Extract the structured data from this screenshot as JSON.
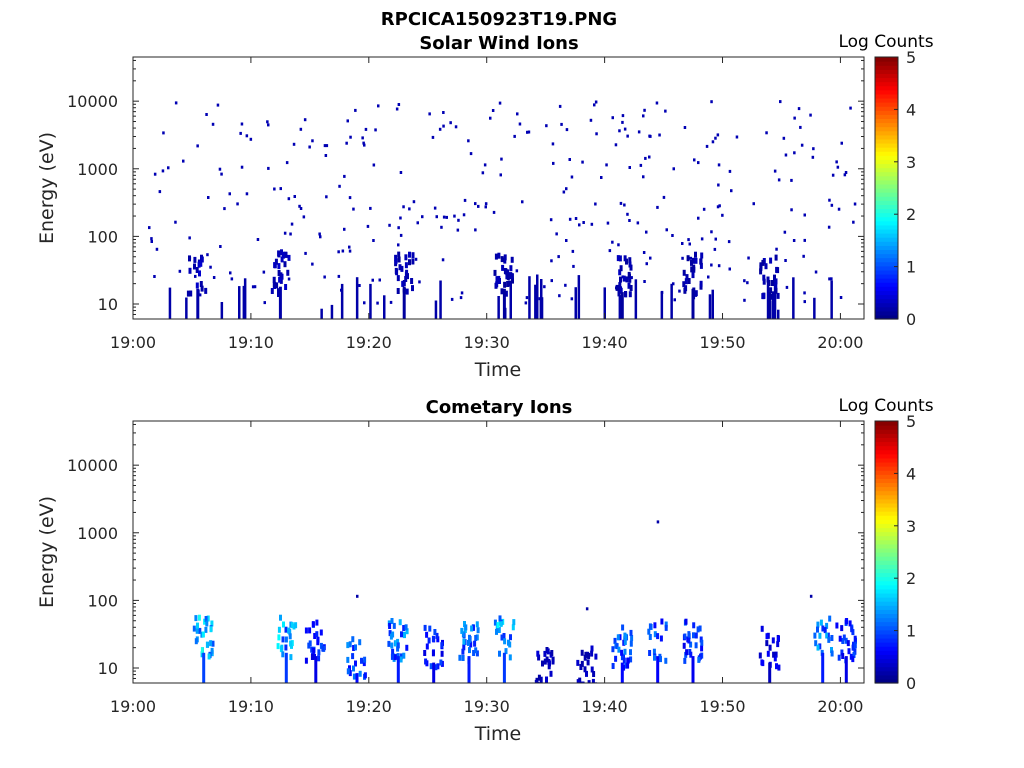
{
  "figure_title": "RPCICA150923T19.PNG",
  "chart_data": [
    {
      "type": "heatmap",
      "title": "Solar Wind Ions",
      "xlabel": "Time",
      "ylabel": "Energy (eV)",
      "x_ticks": [
        "19:00",
        "19:10",
        "19:20",
        "19:30",
        "19:40",
        "19:50",
        "20:00"
      ],
      "xlim": [
        "19:00",
        "20:02"
      ],
      "y_ticks": [
        "10",
        "100",
        "1000",
        "10000"
      ],
      "ylim": [
        6,
        45000
      ],
      "yscale": "log",
      "colorbar": {
        "label": "Log Counts",
        "ticks": [
          "0",
          "1",
          "2",
          "3",
          "4",
          "5"
        ],
        "range": [
          0,
          5
        ],
        "colormap": "jet"
      },
      "clusters": [
        {
          "t": "19:05.5",
          "energy": 28,
          "log_counts": 0.4
        },
        {
          "t": "19:12.5",
          "energy": 30,
          "log_counts": 0.4
        },
        {
          "t": "19:23",
          "energy": 28,
          "log_counts": 0.3
        },
        {
          "t": "19:31.5",
          "energy": 28,
          "log_counts": 0.3
        },
        {
          "t": "19:41.5",
          "energy": 25,
          "log_counts": 0.3
        },
        {
          "t": "19:47.5",
          "energy": 28,
          "log_counts": 0.3
        },
        {
          "t": "19:54",
          "energy": 25,
          "log_counts": 0.3
        }
      ],
      "scatter_range_eV": [
        10,
        10000
      ]
    },
    {
      "type": "heatmap",
      "title": "Cometary Ions",
      "xlabel": "Time",
      "ylabel": "Energy (eV)",
      "x_ticks": [
        "19:00",
        "19:10",
        "19:20",
        "19:30",
        "19:40",
        "19:50",
        "20:00"
      ],
      "xlim": [
        "19:00",
        "20:02"
      ],
      "y_ticks": [
        "10",
        "100",
        "1000",
        "10000"
      ],
      "ylim": [
        6,
        45000
      ],
      "yscale": "log",
      "colorbar": {
        "label": "Log Counts",
        "ticks": [
          "0",
          "1",
          "2",
          "3",
          "4",
          "5"
        ],
        "range": [
          0,
          5
        ],
        "colormap": "jet"
      },
      "clusters": [
        {
          "t": "19:06",
          "energy": 28,
          "log_counts": 1.9
        },
        {
          "t": "19:13",
          "energy": 28,
          "log_counts": 1.8
        },
        {
          "t": "19:15.5",
          "energy": 25,
          "log_counts": 1.0
        },
        {
          "t": "19:19",
          "energy": 14,
          "log_counts": 1.3
        },
        {
          "t": "19:22.5",
          "energy": 25,
          "log_counts": 1.5
        },
        {
          "t": "19:25.5",
          "energy": 20,
          "log_counts": 1.0
        },
        {
          "t": "19:28.5",
          "energy": 25,
          "log_counts": 1.5
        },
        {
          "t": "19:31.5",
          "energy": 28,
          "log_counts": 1.8
        },
        {
          "t": "19:35",
          "energy": 10,
          "log_counts": 0.4
        },
        {
          "t": "19:38.5",
          "energy": 10,
          "log_counts": 0.4
        },
        {
          "t": "19:41.5",
          "energy": 20,
          "log_counts": 1.3
        },
        {
          "t": "19:44.5",
          "energy": 25,
          "log_counts": 1.2
        },
        {
          "t": "19:47.5",
          "energy": 25,
          "log_counts": 1.1
        },
        {
          "t": "19:54",
          "energy": 20,
          "log_counts": 0.6
        },
        {
          "t": "19:58.5",
          "energy": 28,
          "log_counts": 1.5
        },
        {
          "t": "20:00.5",
          "energy": 25,
          "log_counts": 1.0
        }
      ],
      "isolated_points": [
        {
          "t": "19:19",
          "energy": 115
        },
        {
          "t": "19:38.5",
          "energy": 75
        },
        {
          "t": "19:44.5",
          "energy": 1450
        },
        {
          "t": "19:57.5",
          "energy": 115
        }
      ]
    }
  ]
}
